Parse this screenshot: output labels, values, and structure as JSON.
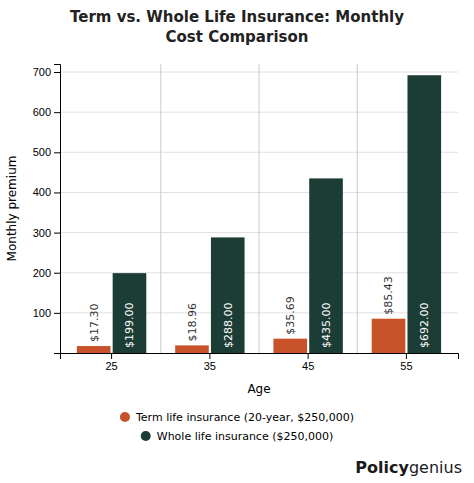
{
  "chart_data": {
    "type": "bar",
    "title": "Term vs. Whole Life Insurance: Monthly\nCost Comparison",
    "x_label": "Age",
    "y_label": "Monthly premium",
    "categories": [
      "25",
      "35",
      "45",
      "55"
    ],
    "series": [
      {
        "name": "Term life insurance (20-year, $250,000)",
        "color": "#C8522A",
        "values": [
          17.3,
          18.96,
          35.69,
          85.43
        ],
        "value_labels": [
          "$17.30",
          "$18.96",
          "$35.69",
          "$85.43"
        ]
      },
      {
        "name": "Whole life insurance ($250,000)",
        "color": "#1C3D35",
        "values": [
          199.0,
          288.0,
          435.0,
          692.0
        ],
        "value_labels": [
          "$199.00",
          "$288.00",
          "$435.00",
          "$692.00"
        ]
      }
    ],
    "ylim": [
      0,
      720
    ],
    "yticks": [
      100,
      200,
      300,
      400,
      500,
      600,
      700
    ],
    "grid": true,
    "legend": "bottom",
    "data_labels": true,
    "annotations": [
      "Policy",
      "genius"
    ]
  }
}
